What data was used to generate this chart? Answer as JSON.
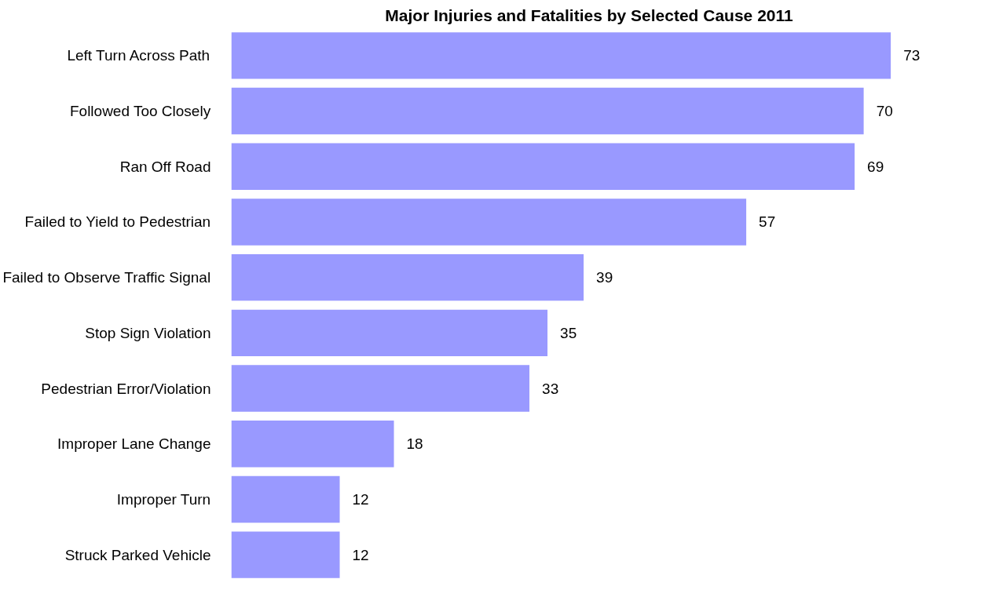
{
  "chart_data": {
    "type": "bar",
    "orientation": "horizontal",
    "title": "Major Injuries and Fatalities by Selected Cause 2011",
    "categories": [
      "Left Turn Across Path",
      "Followed Too Closely",
      "Ran Off Road",
      "Failed to Yield to Pedestrian",
      "Failed to Observe Traffic Signal",
      "Stop Sign Violation",
      "Pedestrian Error/Violation",
      "Improper Lane Change",
      "Improper Turn",
      "Struck Parked Vehicle"
    ],
    "values": [
      73,
      70,
      69,
      57,
      39,
      35,
      33,
      18,
      12,
      12
    ],
    "color": "#9999ff",
    "data_labels": true
  }
}
